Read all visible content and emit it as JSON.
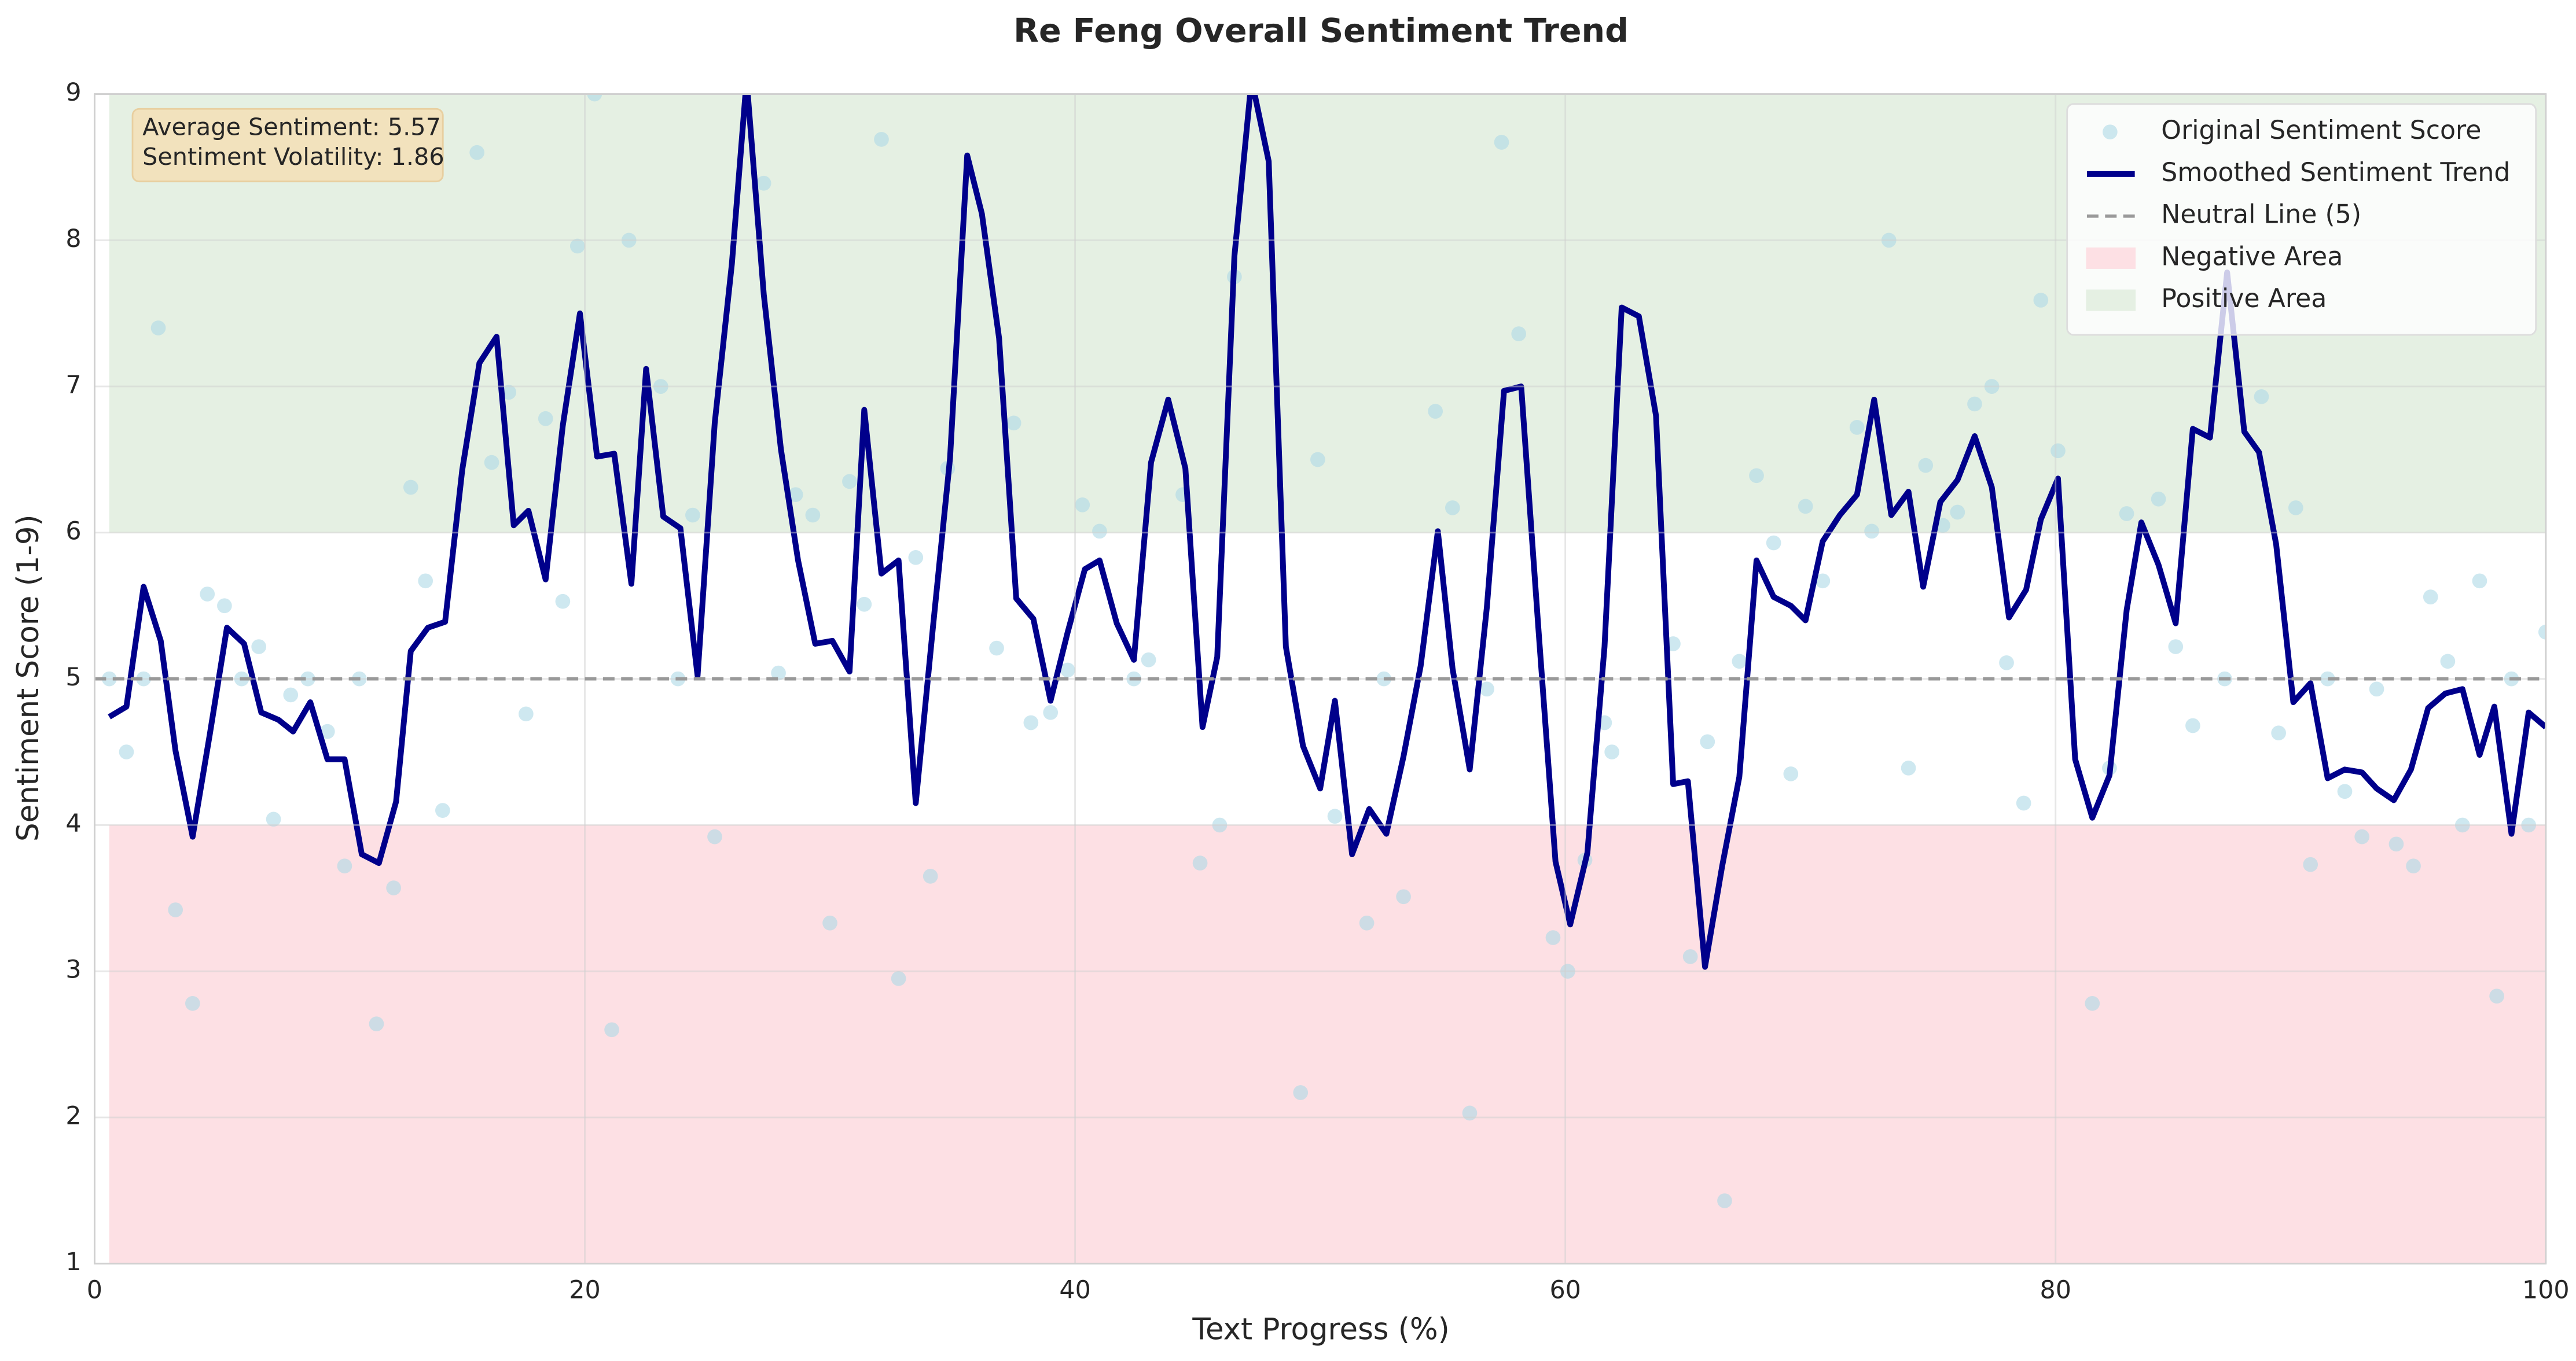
{
  "chart_data": {
    "type": "line",
    "title": "Re Feng Overall Sentiment Trend",
    "xlabel": "Text Progress (%)",
    "ylabel": "Sentiment Score (1-9)",
    "xlim": [
      0,
      100
    ],
    "xticks": [
      0,
      20,
      40,
      60,
      80,
      100
    ],
    "ylim": [
      1,
      9
    ],
    "yticks": [
      1,
      2,
      3,
      4,
      5,
      6,
      7,
      8,
      9
    ],
    "grid": true,
    "legend": "upper right",
    "annotation": [
      "Average Sentiment: 5.57",
      "Sentiment Volatility: 1.86"
    ],
    "series": [
      {
        "name": "Original Sentiment Score",
        "type": "scatter",
        "color": "#add8e6",
        "x": [
          0.6,
          1.3,
          2.0,
          2.6,
          3.3,
          4.0,
          4.6,
          5.3,
          6.0,
          6.7,
          7.3,
          8.0,
          8.7,
          9.5,
          10.2,
          10.8,
          11.5,
          12.2,
          12.9,
          13.5,
          14.2,
          15.6,
          16.2,
          16.9,
          17.6,
          18.4,
          19.1,
          19.7,
          20.4,
          21.1,
          21.8,
          23.1,
          23.8,
          24.4,
          25.3,
          27.3,
          27.9,
          28.6,
          29.3,
          30.0,
          30.8,
          31.4,
          32.1,
          32.8,
          33.5,
          34.1,
          34.8,
          36.8,
          37.5,
          38.2,
          39.0,
          39.7,
          40.3,
          41.0,
          42.4,
          43.0,
          44.4,
          45.1,
          45.9,
          46.5,
          49.2,
          49.9,
          50.6,
          51.9,
          52.6,
          53.4,
          54.7,
          55.4,
          56.1,
          56.8,
          57.4,
          58.1,
          59.5,
          60.1,
          60.8,
          61.6,
          61.9,
          64.4,
          65.1,
          65.8,
          66.5,
          67.1,
          67.8,
          68.5,
          69.2,
          69.8,
          70.5,
          71.9,
          72.5,
          73.2,
          74.0,
          74.7,
          75.4,
          76.0,
          76.7,
          77.4,
          78.0,
          78.7,
          79.4,
          80.1,
          81.5,
          82.2,
          82.9,
          84.2,
          84.9,
          85.6,
          86.9,
          88.4,
          89.1,
          89.8,
          90.4,
          91.1,
          91.8,
          92.5,
          93.1,
          93.9,
          94.6,
          95.3,
          96.0,
          96.6,
          97.3,
          98.0,
          98.6,
          99.3,
          100.0
        ],
        "values": [
          5.0,
          4.5,
          5.0,
          7.4,
          3.42,
          2.78,
          5.58,
          5.5,
          5.0,
          5.22,
          4.04,
          4.89,
          5.0,
          4.64,
          3.72,
          5.0,
          2.64,
          3.57,
          6.31,
          5.67,
          4.1,
          8.6,
          6.48,
          6.96,
          4.76,
          6.78,
          5.53,
          7.96,
          9.0,
          2.6,
          8.0,
          7.0,
          5.0,
          6.12,
          3.92,
          8.39,
          5.04,
          6.26,
          6.12,
          3.33,
          6.35,
          5.51,
          8.69,
          2.95,
          5.83,
          3.65,
          6.44,
          5.21,
          6.75,
          4.7,
          4.77,
          5.06,
          6.19,
          6.01,
          5.0,
          5.13,
          6.26,
          3.74,
          4.0,
          7.75,
          2.17,
          6.5,
          4.06,
          3.33,
          5.0,
          3.51,
          6.83,
          6.17,
          2.03,
          4.93,
          8.67,
          7.36,
          3.23,
          3.0,
          3.76,
          4.7,
          4.5,
          5.24,
          3.1,
          4.57,
          1.43,
          5.12,
          6.39,
          5.93,
          4.35,
          6.18,
          5.67,
          6.72,
          6.01,
          8.0,
          4.39,
          6.46,
          6.05,
          6.14,
          6.88,
          7.0,
          5.11,
          4.15,
          7.59,
          6.56,
          2.78,
          4.39,
          6.13,
          6.23,
          5.22,
          4.68,
          5.0,
          6.93,
          4.63,
          6.17,
          3.73,
          5.0,
          4.23,
          3.92,
          4.93,
          3.87,
          3.72,
          5.56,
          5.12,
          4.0,
          5.67,
          2.83,
          5.0,
          4.0,
          5.32
        ]
      },
      {
        "name": "Smoothed Sentiment Trend",
        "type": "line",
        "color": "#00008b",
        "x": [
          0.6,
          1.3,
          2.0,
          2.7,
          3.3,
          4.0,
          4.7,
          5.4,
          6.1,
          6.8,
          7.5,
          8.1,
          8.8,
          9.5,
          10.2,
          10.9,
          11.6,
          12.3,
          12.9,
          13.6,
          14.3,
          15.0,
          15.7,
          16.4,
          17.1,
          17.7,
          18.4,
          19.1,
          19.8,
          20.5,
          21.2,
          21.9,
          22.5,
          23.2,
          23.9,
          24.6,
          25.3,
          26.0,
          26.6,
          27.3,
          28.0,
          28.7,
          29.4,
          30.1,
          30.8,
          31.4,
          32.1,
          32.8,
          33.5,
          34.2,
          34.9,
          35.6,
          36.2,
          36.9,
          37.6,
          38.3,
          39.0,
          39.7,
          40.4,
          41.0,
          41.7,
          42.4,
          43.1,
          43.8,
          44.5,
          45.2,
          45.8,
          46.5,
          47.2,
          47.9,
          48.6,
          49.3,
          50.0,
          50.6,
          51.3,
          52.0,
          52.7,
          53.4,
          54.1,
          54.8,
          55.4,
          56.1,
          56.8,
          57.5,
          58.2,
          58.9,
          59.6,
          60.2,
          60.9,
          61.6,
          62.3,
          63.0,
          63.7,
          64.4,
          65.0,
          65.7,
          66.4,
          67.1,
          67.8,
          68.5,
          69.2,
          69.8,
          70.5,
          71.2,
          71.9,
          72.6,
          73.3,
          74.0,
          74.6,
          75.3,
          76.0,
          76.7,
          77.4,
          78.1,
          78.8,
          79.4,
          80.1,
          80.8,
          81.5,
          82.2,
          82.9,
          83.5,
          84.2,
          84.9,
          85.6,
          86.3,
          87.0,
          87.7,
          88.3,
          89.0,
          89.7,
          90.4,
          91.1,
          91.8,
          92.5,
          93.1,
          93.8,
          94.5,
          95.2,
          95.9,
          96.6,
          97.3,
          97.9,
          98.6,
          99.3,
          100.0
        ],
        "values": [
          4.74,
          4.81,
          5.63,
          5.26,
          4.51,
          3.92,
          4.62,
          5.35,
          5.24,
          4.77,
          4.72,
          4.64,
          4.84,
          4.45,
          4.45,
          3.8,
          3.74,
          4.16,
          5.19,
          5.35,
          5.39,
          6.43,
          7.16,
          7.34,
          6.05,
          6.15,
          5.68,
          6.73,
          7.5,
          6.52,
          6.54,
          5.65,
          7.12,
          6.11,
          6.03,
          5.02,
          6.75,
          7.84,
          9.1,
          7.63,
          6.57,
          5.81,
          5.24,
          5.26,
          5.05,
          6.84,
          5.72,
          5.81,
          4.15,
          5.35,
          6.51,
          8.58,
          8.18,
          7.33,
          5.55,
          5.41,
          4.85,
          5.32,
          5.75,
          5.81,
          5.38,
          5.13,
          6.48,
          6.91,
          6.44,
          4.67,
          5.15,
          7.89,
          9.1,
          8.54,
          5.22,
          4.54,
          4.25,
          4.85,
          3.8,
          4.11,
          3.94,
          4.47,
          5.09,
          6.01,
          5.07,
          4.38,
          5.49,
          6.97,
          7.0,
          5.35,
          3.75,
          3.32,
          3.81,
          5.22,
          7.54,
          7.48,
          6.8,
          4.28,
          4.3,
          3.03,
          3.72,
          4.33,
          5.81,
          5.56,
          5.5,
          5.4,
          5.94,
          6.12,
          6.26,
          6.91,
          6.12,
          6.28,
          5.63,
          6.21,
          6.36,
          6.66,
          6.31,
          5.42,
          5.61,
          6.09,
          6.37,
          4.45,
          4.05,
          4.34,
          5.47,
          6.07,
          5.78,
          5.38,
          6.71,
          6.65,
          7.78,
          6.69,
          6.55,
          5.92,
          4.84,
          4.97,
          4.32,
          4.38,
          4.36,
          4.25,
          4.17,
          4.38,
          4.8,
          4.9,
          4.93,
          4.48,
          4.81,
          3.94,
          4.77,
          4.67
        ]
      }
    ],
    "reference_line": {
      "name": "Neutral Line (5)",
      "value": 5,
      "color": "#999999"
    },
    "bands": [
      {
        "name": "Negative Area",
        "range": [
          1,
          4
        ],
        "color": "#fde0e4"
      },
      {
        "name": "Positive Area",
        "range": [
          6,
          9
        ],
        "color": "#e5f0e3"
      }
    ]
  }
}
